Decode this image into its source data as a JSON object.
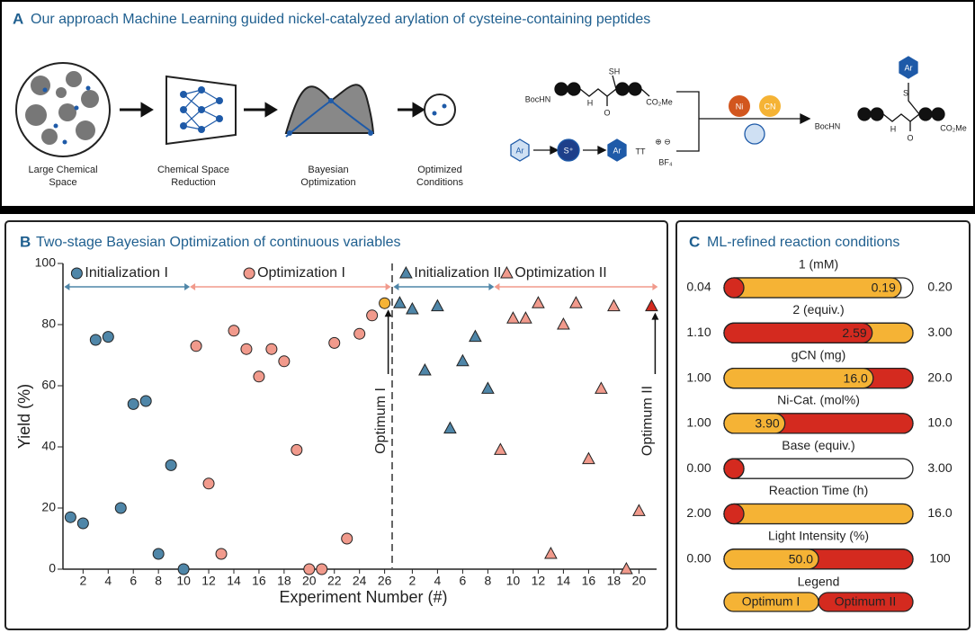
{
  "panel_a": {
    "letter": "A",
    "title": "Our approach Machine Learning guided nickel-catalyzed arylation of cysteine-containing peptides",
    "steps": [
      [
        "Large Chemical",
        "Space"
      ],
      [
        "Chemical Space",
        "Reduction"
      ],
      [
        "Bayesian",
        "Optimization"
      ],
      [
        "Optimized",
        "Conditions"
      ]
    ],
    "chem": {
      "reactant_n": "BocHN",
      "thiol": "SH",
      "ester": "CO₂Me",
      "nh": "H",
      "carbonyl": "O",
      "aryl1": "Ar",
      "sulfonium": "S⁺",
      "aryl2": "Ar",
      "tt": "TT",
      "charges": "⊕ ⊖",
      "counterion": "BF₄",
      "ni": "Ni",
      "cn": "CN",
      "product_n": "BocHN",
      "product_aryl": "Ar",
      "product_s": "S",
      "product_ester": "CO₂Me",
      "product_nh": "H",
      "product_carbonyl": "O"
    }
  },
  "chart_data": {
    "type": "scatter",
    "letter": "B",
    "title": "Two-stage Bayesian Optimization of continuous variables",
    "xlabel": "Experiment Number (#)",
    "ylabel": "Yield (%)",
    "ylim": [
      0,
      100
    ],
    "yticks": [
      0,
      20,
      40,
      60,
      80,
      100
    ],
    "stages": [
      {
        "xlim": [
          0.4,
          26.6
        ],
        "xticks": [
          2,
          4,
          6,
          8,
          10,
          12,
          14,
          16,
          18,
          20,
          22,
          24,
          26
        ]
      },
      {
        "xlim": [
          0.4,
          21.4
        ],
        "xticks": [
          2,
          4,
          6,
          8,
          10,
          12,
          14,
          16,
          18,
          20
        ]
      }
    ],
    "series": [
      {
        "name": "Initialization I",
        "stage": 0,
        "marker": "circle",
        "color": "#4f86a8",
        "x": [
          1,
          2,
          3,
          4,
          5,
          6,
          7,
          8,
          9,
          10
        ],
        "values": [
          17,
          15,
          75,
          76,
          20,
          54,
          55,
          5,
          34,
          0
        ]
      },
      {
        "name": "Optimization I",
        "stage": 0,
        "marker": "circle",
        "color": "#f19a8c",
        "x": [
          11,
          12,
          13,
          14,
          15,
          16,
          17,
          18,
          19,
          20,
          21,
          22,
          23,
          24,
          25,
          26
        ],
        "values": [
          73,
          28,
          5,
          78,
          72,
          63,
          72,
          68,
          39,
          0,
          0,
          74,
          10,
          77,
          83,
          87
        ],
        "highlight_color": "#f5b335"
      },
      {
        "name": "Initialization II",
        "stage": 1,
        "marker": "triangle",
        "color": "#4f86a8",
        "x": [
          1,
          2,
          3,
          4,
          5,
          6,
          7,
          8
        ],
        "values": [
          87,
          85,
          65,
          86,
          46,
          68,
          76,
          59
        ]
      },
      {
        "name": "Optimization II",
        "stage": 1,
        "marker": "triangle",
        "color": "#f19a8c",
        "x": [
          9,
          10,
          11,
          12,
          13,
          14,
          15,
          16,
          17,
          18,
          19,
          20,
          21
        ],
        "values": [
          39,
          82,
          82,
          87,
          5,
          80,
          87,
          36,
          59,
          86,
          0,
          19,
          86
        ],
        "highlight_color": "#d42a1f"
      }
    ],
    "annotations": [
      "Optimum I",
      "Optimum II"
    ]
  },
  "panel_c": {
    "letter": "C",
    "title": "ML-refined reaction conditions",
    "colors": [
      "#f5b335",
      "#d42a1f"
    ],
    "bars": [
      {
        "name": "1 (mM)",
        "min": {
          "value": 0.04,
          "label": "0.04"
        },
        "max": {
          "value": 0.2,
          "label": "0.20"
        },
        "values": [
          0.19,
          0.04
        ],
        "value_labels": [
          "0.19",
          null
        ]
      },
      {
        "name": "2 (equiv.)",
        "min": {
          "value": 1.1,
          "label": "1.10"
        },
        "max": {
          "value": 3,
          "label": "3.00"
        },
        "values": [
          3,
          2.59
        ],
        "value_labels": [
          null,
          "2.59"
        ]
      },
      {
        "name": "gCN (mg)",
        "min": {
          "value": 1,
          "label": "1.00"
        },
        "max": {
          "value": 20,
          "label": "20.0"
        },
        "values": [
          16,
          20
        ],
        "value_labels": [
          "16.0",
          null
        ]
      },
      {
        "name": "Ni-Cat. (mol%)",
        "min": {
          "value": 1,
          "label": "1.00"
        },
        "max": {
          "value": 10,
          "label": "10.0"
        },
        "values": [
          3.9,
          10
        ],
        "value_labels": [
          "3.90",
          null
        ]
      },
      {
        "name": "Base (equiv.)",
        "min": {
          "value": 0,
          "label": "0.00"
        },
        "max": {
          "value": 3,
          "label": "3.00"
        },
        "values": [
          0.25,
          0.12
        ],
        "value_labels": [
          null,
          null
        ]
      },
      {
        "name": "Reaction Time (h)",
        "min": {
          "value": 2,
          "label": "2.00"
        },
        "max": {
          "value": 16,
          "label": "16.0"
        },
        "values": [
          16,
          2
        ],
        "value_labels": [
          null,
          null
        ]
      },
      {
        "name": "Light Intensity (%)",
        "min": {
          "value": 0,
          "label": "0.00"
        },
        "max": 100,
        "values": [
          50,
          100
        ],
        "value_labels": [
          "50.0",
          null
        ]
      }
    ],
    "legend_title": "Legend",
    "legend": [
      "Optimum I",
      "Optimum II"
    ]
  }
}
